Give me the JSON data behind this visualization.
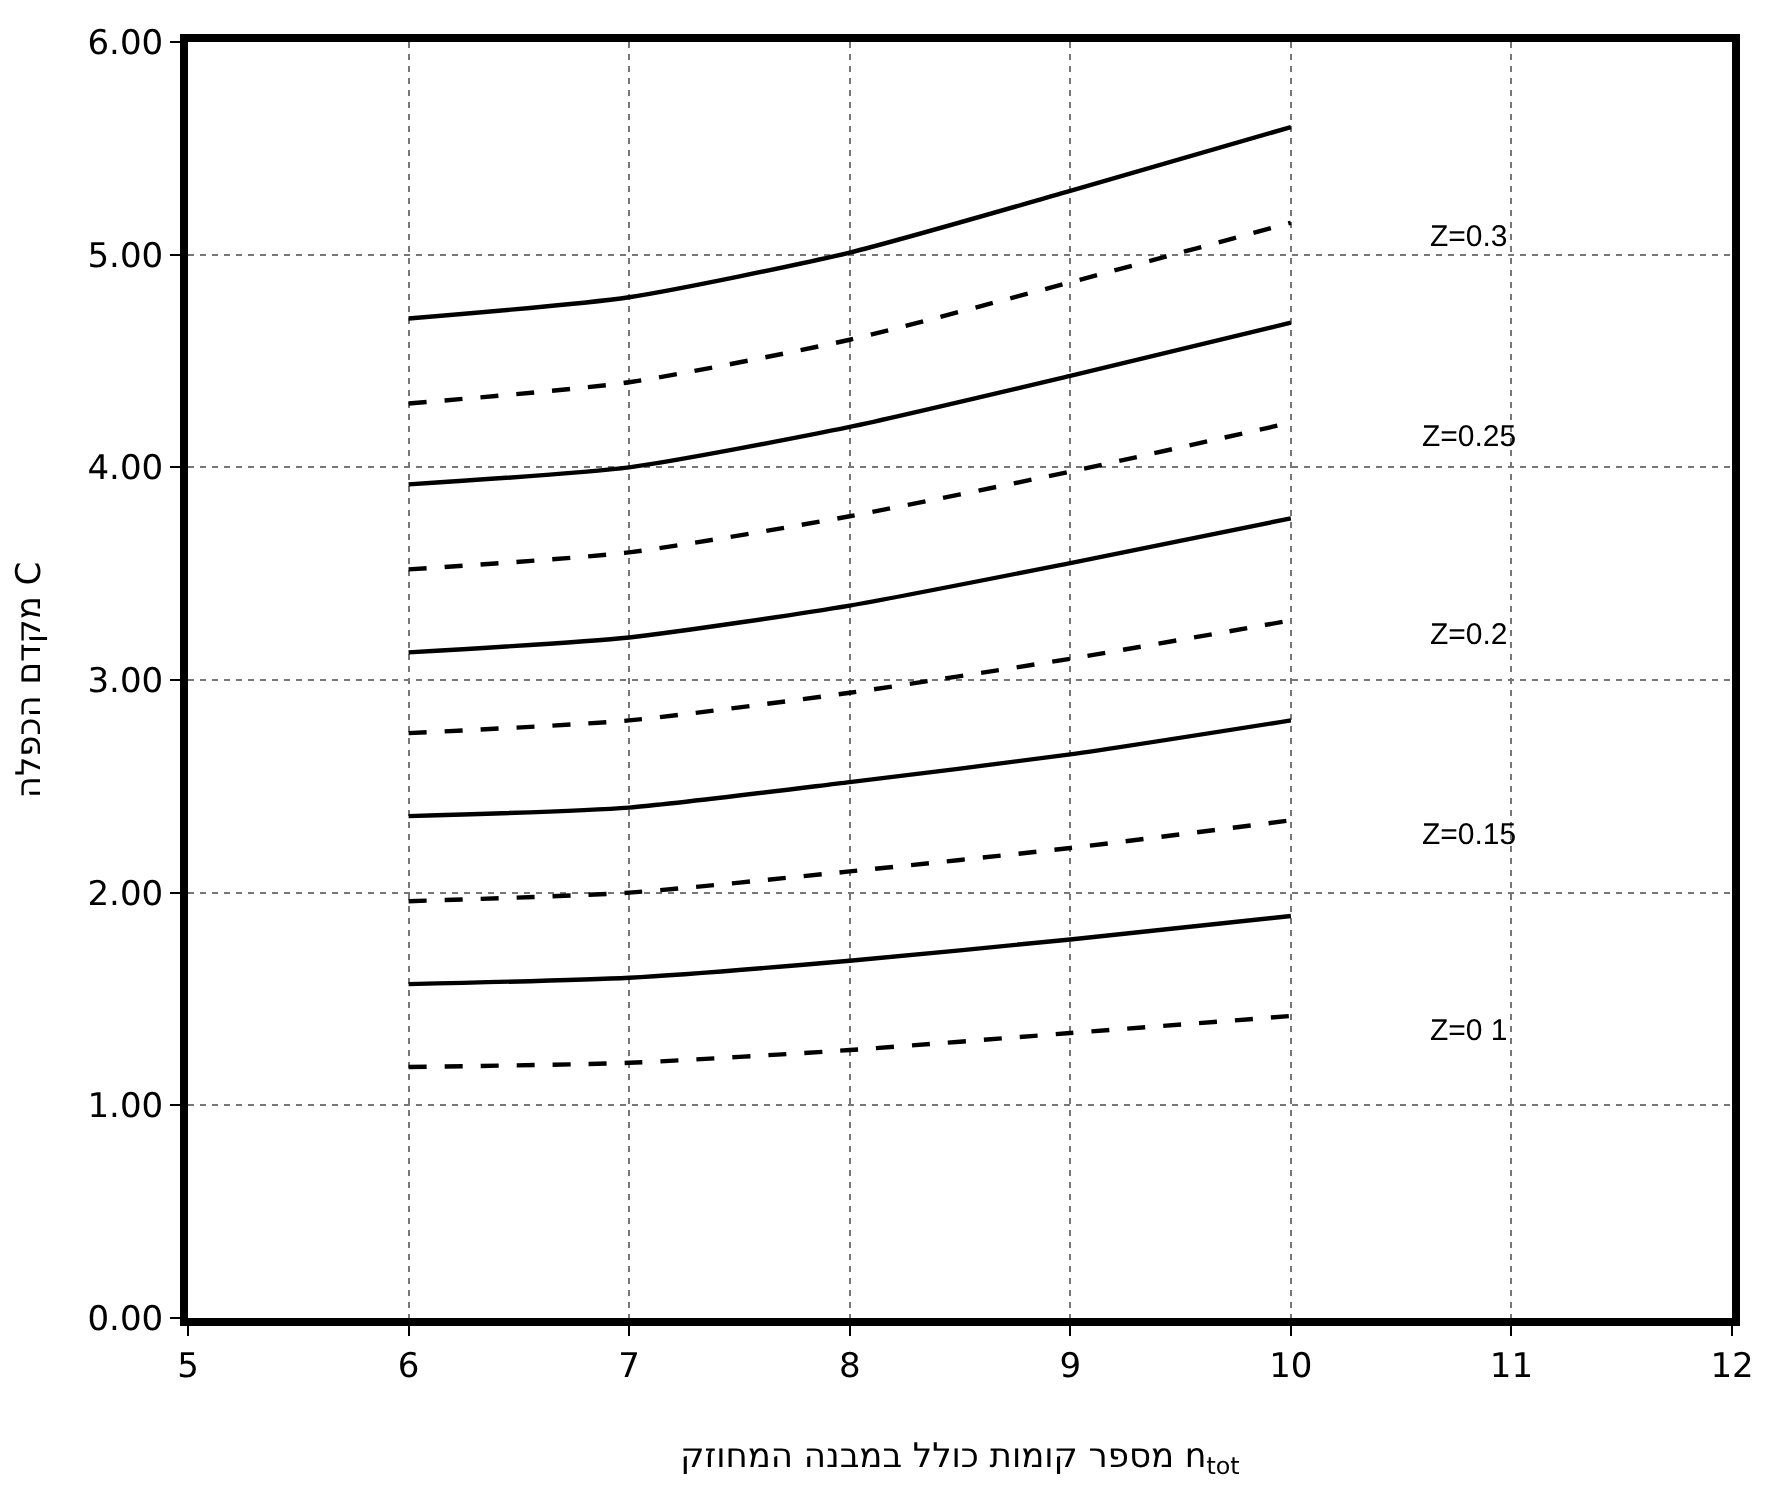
{
  "chart_data": {
    "type": "line",
    "xlabel": "מספר קומות כולל במבנה המחוזק n$_{tot}$",
    "ylabel": "מקדם הכפלה C",
    "x": [
      6,
      7,
      8,
      9,
      10
    ],
    "series": [
      {
        "color": "#000000",
        "line_style": "solid",
        "values": [
          4.7,
          4.8,
          5.01,
          5.3,
          5.6
        ]
      },
      {
        "color": "#000000",
        "line_style": "dashed",
        "values": [
          4.3,
          4.4,
          4.6,
          4.87,
          5.15
        ]
      },
      {
        "color": "#000000",
        "line_style": "solid",
        "values": [
          3.92,
          4.0,
          4.19,
          4.43,
          4.68
        ]
      },
      {
        "color": "#000000",
        "line_style": "dashed",
        "values": [
          3.52,
          3.6,
          3.77,
          3.98,
          4.21
        ]
      },
      {
        "color": "#000000",
        "line_style": "solid",
        "values": [
          3.13,
          3.2,
          3.35,
          3.55,
          3.76
        ]
      },
      {
        "color": "#000000",
        "line_style": "dashed",
        "values": [
          2.75,
          2.81,
          2.94,
          3.1,
          3.28
        ]
      },
      {
        "color": "#000000",
        "line_style": "solid",
        "values": [
          2.36,
          2.4,
          2.52,
          2.65,
          2.81
        ]
      },
      {
        "color": "#000000",
        "line_style": "dashed",
        "values": [
          1.96,
          2.0,
          2.1,
          2.21,
          2.34
        ]
      },
      {
        "color": "#000000",
        "line_style": "solid",
        "values": [
          1.57,
          1.6,
          1.68,
          1.78,
          1.89
        ]
      },
      {
        "color": "#000000",
        "line_style": "dashed",
        "values": [
          1.18,
          1.2,
          1.26,
          1.34,
          1.42
        ]
      }
    ],
    "annotations": [
      "Z=0.3",
      "Z=0.25",
      "Z=0.2",
      "Z=0.15",
      "Z=0 1"
    ],
    "xlim": [
      5,
      12
    ],
    "xticks": [
      5,
      6,
      7,
      8,
      9,
      10,
      11,
      12
    ],
    "ylim": [
      0,
      6
    ],
    "yticks": [
      {
        "value": 0,
        "label": "0.00"
      },
      {
        "value": 1,
        "label": "1.00"
      },
      {
        "value": 2,
        "label": "2.00"
      },
      {
        "value": 3,
        "label": "3.00"
      },
      {
        "value": 4,
        "label": "4.00"
      },
      {
        "value": 5,
        "label": "5.00"
      },
      {
        "value": 6,
        "label": "6.00"
      }
    ],
    "grid": true,
    "marker": "none"
  }
}
